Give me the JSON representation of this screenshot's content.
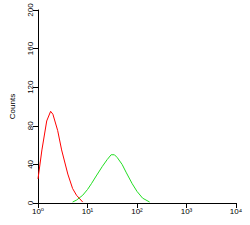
{
  "chart_data": {
    "type": "line",
    "y_label": "Counts",
    "log": "x",
    "grid": false,
    "x": [
      1,
      1.2,
      1.5,
      1.8,
      2,
      2.5,
      3,
      4,
      5,
      6,
      8,
      10,
      12,
      15,
      20,
      25,
      30,
      35,
      40,
      50,
      60,
      80,
      100,
      130,
      180
    ],
    "series": [
      {
        "color": "#ff0000",
        "values": [
          25,
          55,
          85,
          95,
          92,
          75,
          55,
          30,
          15,
          8,
          1,
          null,
          null,
          null,
          null,
          null,
          null,
          null,
          null,
          null,
          null,
          null,
          null,
          null,
          null
        ]
      },
      {
        "color": "#22dd22",
        "values": [
          null,
          null,
          null,
          null,
          null,
          null,
          null,
          null,
          1,
          3,
          8,
          14,
          20,
          28,
          38,
          45,
          50,
          50,
          47,
          40,
          32,
          20,
          12,
          5,
          1
        ]
      }
    ],
    "xlim": [
      1,
      10000
    ],
    "xticks": [
      {
        "value": 1,
        "label": "10⁰"
      },
      {
        "value": 10,
        "label": "10¹"
      },
      {
        "value": 100,
        "label": "10²"
      },
      {
        "value": 1000,
        "label": "10³"
      },
      {
        "value": 10000,
        "label": "10⁴"
      }
    ],
    "ylim": [
      0,
      200
    ],
    "yticks": [
      0,
      40,
      80,
      120,
      160,
      200
    ]
  }
}
